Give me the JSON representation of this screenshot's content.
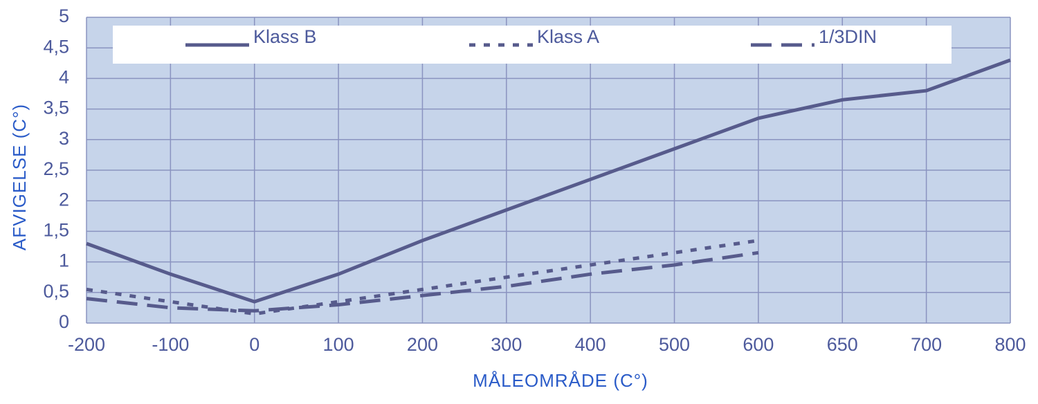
{
  "chart_data": {
    "type": "line",
    "x_label": "MÅLEOMRÅDE (C°)",
    "y_label": "AFVIGELSE (C°)",
    "categories": [
      "-200",
      "-100",
      "0",
      "100",
      "200",
      "300",
      "400",
      "500",
      "600",
      "650",
      "700",
      "800"
    ],
    "series": [
      {
        "name": "Klass B",
        "color": "#575b8c",
        "style": "solid",
        "values": [
          1.3,
          0.8,
          0.35,
          0.8,
          1.35,
          1.85,
          2.35,
          2.85,
          3.35,
          3.65,
          3.8,
          4.3
        ]
      },
      {
        "name": "Klass A",
        "color": "#575b8c",
        "style": "dotted",
        "values": [
          0.55,
          0.35,
          0.15,
          0.35,
          0.55,
          0.75,
          0.95,
          1.15,
          1.35,
          null,
          null,
          null
        ]
      },
      {
        "name": "1/3DIN",
        "color": "#575b8c",
        "style": "dashed",
        "values": [
          0.4,
          0.25,
          0.2,
          0.3,
          0.45,
          0.6,
          0.8,
          0.95,
          1.15,
          null,
          null,
          null
        ]
      }
    ],
    "ylim": [
      0,
      5
    ],
    "yticks": [
      0,
      {
        "value": 0.5,
        "label": "0,5"
      },
      1,
      {
        "value": 1.5,
        "label": "1,5"
      },
      2,
      {
        "value": 2.5,
        "label": "2,5"
      },
      3,
      {
        "value": 3.5,
        "label": "3,5"
      },
      4,
      {
        "value": 4.5,
        "label": "4,5"
      },
      5
    ],
    "grid": true
  }
}
